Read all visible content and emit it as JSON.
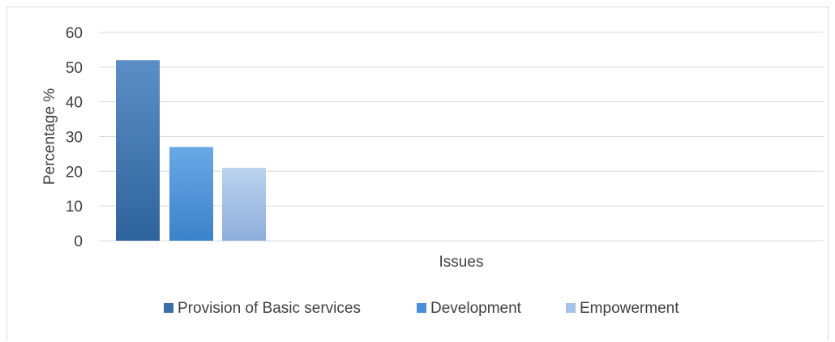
{
  "chart_data": {
    "type": "bar",
    "title": "",
    "xlabel": "Issues",
    "ylabel": "Percentage %",
    "categories": [
      "Issues"
    ],
    "series": [
      {
        "name": "Provision of Basic services",
        "values": [
          52
        ],
        "color": "#3a6fa6"
      },
      {
        "name": "Development",
        "values": [
          27
        ],
        "color": "#4a8fd6"
      },
      {
        "name": "Empowerment",
        "values": [
          21
        ],
        "color": "#a6c2e6"
      }
    ],
    "ylim": [
      0,
      60
    ],
    "yticks": [
      0,
      10,
      20,
      30,
      40,
      50,
      60
    ],
    "grid": true,
    "legend": "bottom",
    "colors": {
      "gridline": "#d9d9d9",
      "text": "#404040"
    }
  }
}
